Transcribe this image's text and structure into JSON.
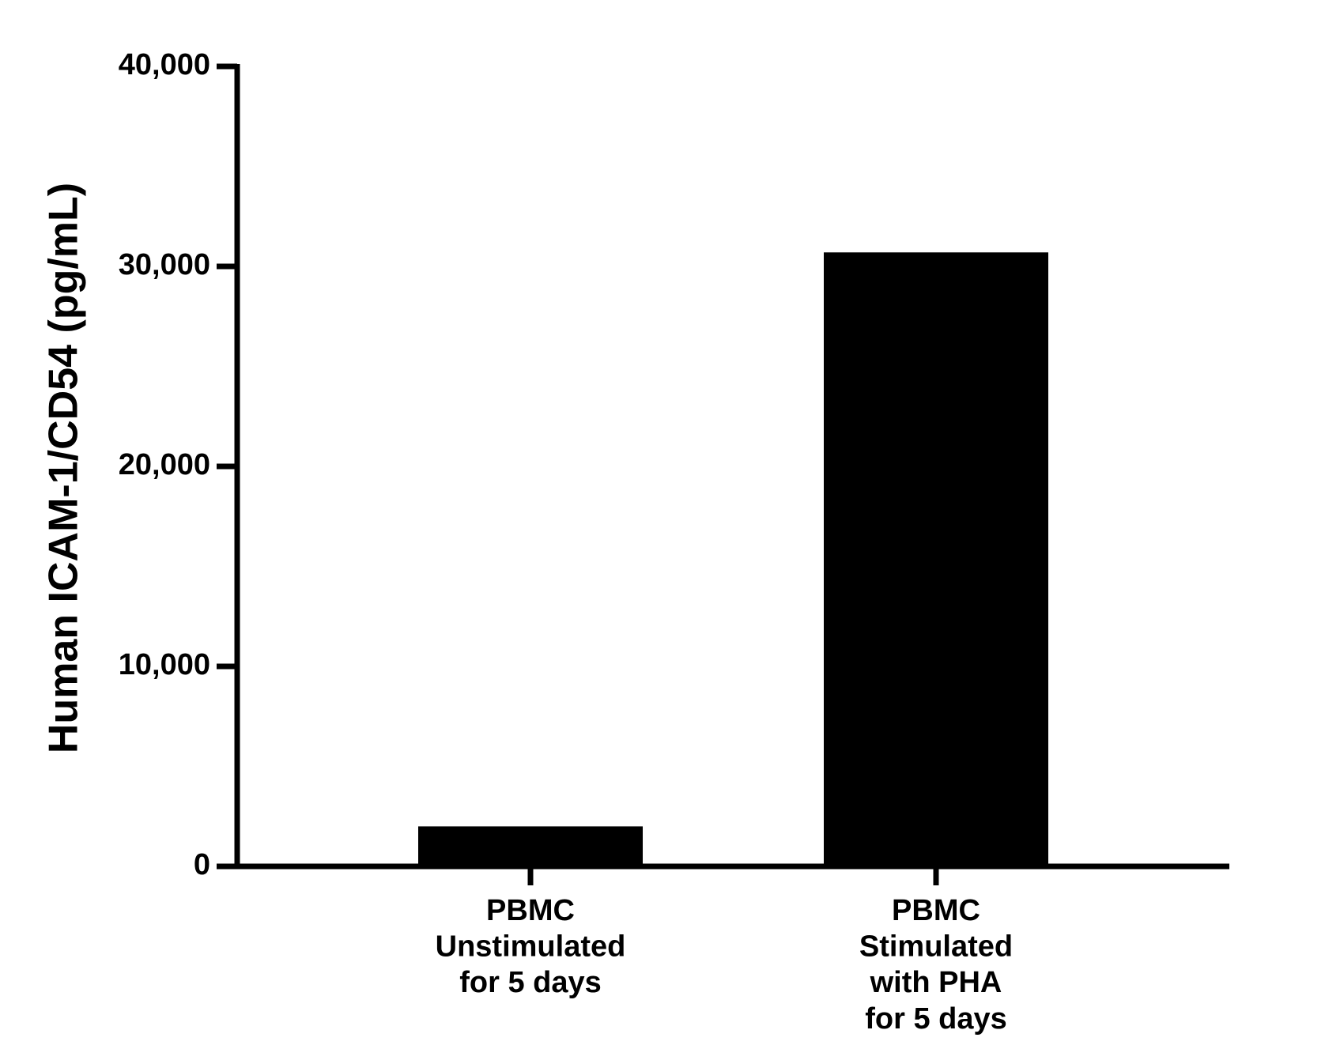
{
  "chart_data": {
    "type": "bar",
    "y_label": "Human ICAM-1/CD54 (pg/mL)",
    "categories": [
      "PBMC\nUnstimulated\nfor 5 days",
      "PBMC\nStimulated\nwith PHA\nfor 5 days"
    ],
    "values": [
      2000,
      30700
    ],
    "color": "#000000",
    "ylim": [
      0,
      40000
    ],
    "yticks": [
      0,
      {
        "value": 10000,
        "label": "10,000"
      },
      {
        "value": 20000,
        "label": "20,000"
      },
      {
        "value": 30000,
        "label": "30,000"
      },
      {
        "value": 40000,
        "label": "40,000"
      }
    ],
    "grid": false
  }
}
